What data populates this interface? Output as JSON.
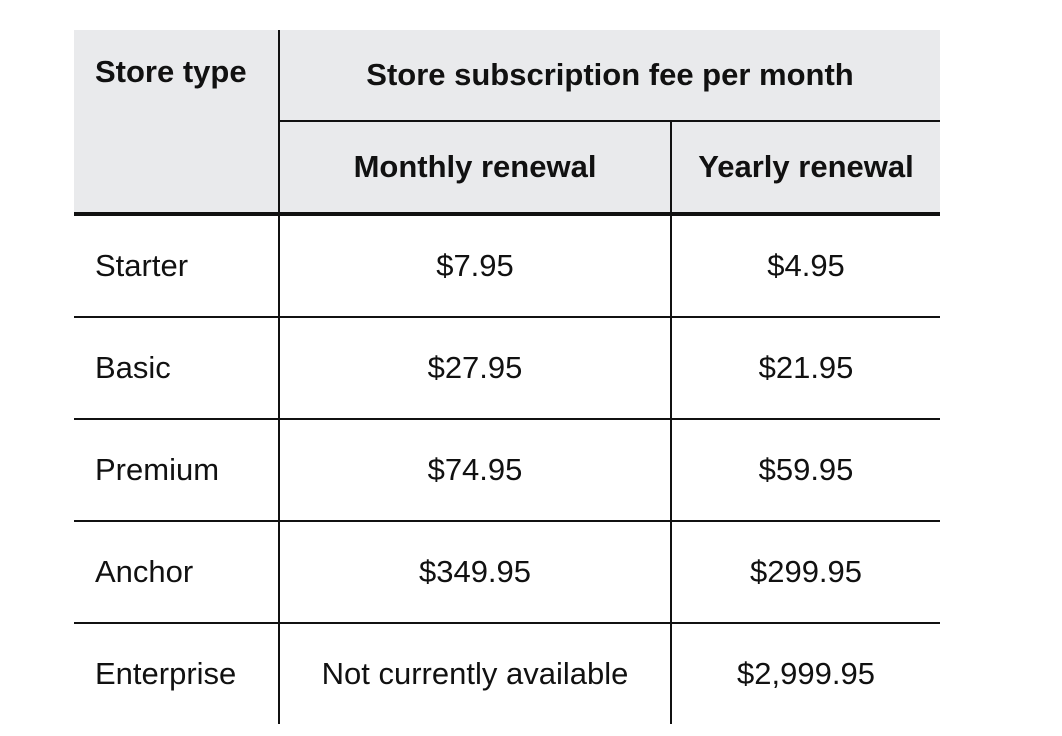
{
  "table": {
    "headers": {
      "store_type": "Store type",
      "group": "Store subscription fee per month",
      "monthly": "Monthly renewal",
      "yearly": "Yearly renewal"
    },
    "rows": [
      {
        "type": "Starter",
        "monthly": "$7.95",
        "yearly": "$4.95"
      },
      {
        "type": "Basic",
        "monthly": "$27.95",
        "yearly": "$21.95"
      },
      {
        "type": "Premium",
        "monthly": "$74.95",
        "yearly": "$59.95"
      },
      {
        "type": "Anchor",
        "monthly": "$349.95",
        "yearly": "$299.95"
      },
      {
        "type": "Enterprise",
        "monthly": "Not currently available",
        "yearly": "$2,999.95"
      }
    ]
  },
  "colors": {
    "header_background": "#e9eaec",
    "rule": "#111111",
    "text": "#111111"
  }
}
